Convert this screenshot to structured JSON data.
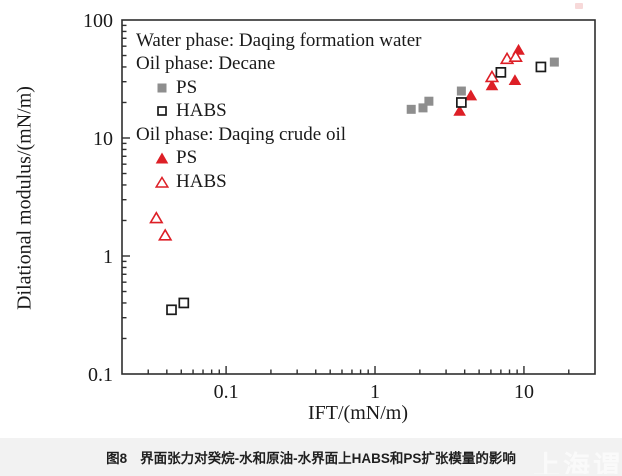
{
  "figure": {
    "y_axis_label": "Dilational modulus/(mN/m)",
    "x_axis_label": "IFT/(mN/m)"
  },
  "legend": {
    "lines": [
      {
        "text": "Water phase: Daqing formation water",
        "marker": null
      },
      {
        "text": "Oil phase: Decane",
        "marker": null
      },
      {
        "text": "PS",
        "marker": "filled-square"
      },
      {
        "text": "HABS",
        "marker": "open-square"
      },
      {
        "text": "Oil phase: Daqing crude oil",
        "marker": null
      },
      {
        "text": "PS",
        "marker": "filled-triangle"
      },
      {
        "text": "HABS",
        "marker": "open-triangle"
      }
    ]
  },
  "chart_data": {
    "type": "scatter",
    "x_scale": "log",
    "y_scale": "log",
    "xlim": [
      0.02,
      30
    ],
    "ylim": [
      0.1,
      100
    ],
    "xlabel": "IFT/(mN/m)",
    "ylabel": "Dilational modulus/(mN/m)",
    "x_ticks": [
      {
        "v": 0.1,
        "label": "0.1"
      },
      {
        "v": 1,
        "label": "1"
      },
      {
        "v": 10,
        "label": "10"
      }
    ],
    "y_ticks": [
      {
        "v": 100,
        "label": "100"
      },
      {
        "v": 10,
        "label": "10"
      },
      {
        "v": 1,
        "label": "1"
      },
      {
        "v": 0.1,
        "label": "0.1"
      }
    ],
    "colors": {
      "gray": "#8e8e8e",
      "red": "#dd1f26",
      "axis": "#2e2e2e",
      "open_marker_edge": "#1a1a1a"
    },
    "series": [
      {
        "id": "ps-decane",
        "name": "PS (oil phase: Decane)",
        "marker": "filled-square",
        "color": "#8e8e8e",
        "points": [
          [
            1.75,
            17.5
          ],
          [
            2.1,
            18
          ],
          [
            2.3,
            20.5
          ],
          [
            3.8,
            25
          ],
          [
            16,
            44
          ]
        ]
      },
      {
        "id": "habs-decane",
        "name": "HABS (oil phase: Decane)",
        "marker": "open-square",
        "color": "#1a1a1a",
        "points": [
          [
            0.043,
            0.35
          ],
          [
            0.052,
            0.4
          ],
          [
            3.8,
            20
          ],
          [
            7.0,
            36
          ],
          [
            13,
            40
          ]
        ]
      },
      {
        "id": "ps-crude",
        "name": "PS (oil phase: Daqing crude oil)",
        "marker": "filled-triangle",
        "color": "#dd1f26",
        "points": [
          [
            3.7,
            17
          ],
          [
            4.4,
            23
          ],
          [
            6.1,
            28
          ],
          [
            8.7,
            31
          ],
          [
            9.2,
            56
          ]
        ]
      },
      {
        "id": "habs-crude",
        "name": "HABS (oil phase: Daqing crude oil)",
        "marker": "open-triangle",
        "color": "#dd1f26",
        "points": [
          [
            0.034,
            2.1
          ],
          [
            0.039,
            1.5
          ],
          [
            6.1,
            33
          ],
          [
            7.7,
            47
          ],
          [
            8.8,
            49
          ]
        ]
      }
    ]
  },
  "caption": {
    "label": "图8",
    "text": "界面张力对癸烷-水和原油-水界面上HABS和PS扩张模量的影响"
  },
  "watermark": {
    "text": "上海谓教"
  }
}
